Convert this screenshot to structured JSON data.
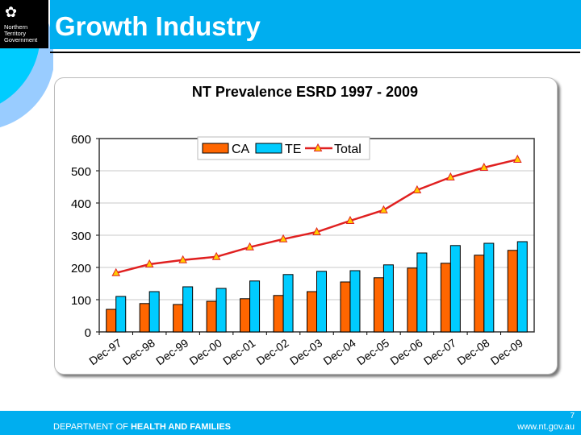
{
  "logo": {
    "text_lines": [
      "Northern",
      "Territory",
      "Government"
    ]
  },
  "header": {
    "title": "Growth Industry"
  },
  "footer": {
    "dept_prefix": "DEPARTMENT OF ",
    "dept_bold": "HEALTH AND FAMILIES",
    "url": "www.nt.gov.au",
    "page_number": "7"
  },
  "colors": {
    "brand_blue": "#00aeef",
    "ca": "#ff6600",
    "te": "#00ccff",
    "total": "#e02020",
    "marker": "#ffcc00"
  },
  "chart_data": {
    "type": "bar",
    "title": "NT Prevalence ESRD 1997 - 2009",
    "categories": [
      "Dec-97",
      "Dec-98",
      "Dec-99",
      "Dec-00",
      "Dec-01",
      "Dec-02",
      "Dec-03",
      "Dec-04",
      "Dec-05",
      "Dec-06",
      "Dec-07",
      "Dec-08",
      "Dec-09"
    ],
    "series": [
      {
        "name": "CA",
        "kind": "bar",
        "values": [
          70,
          88,
          85,
          95,
          103,
          113,
          125,
          155,
          168,
          198,
          213,
          238,
          253
        ]
      },
      {
        "name": "TE",
        "kind": "bar",
        "values": [
          110,
          125,
          140,
          135,
          158,
          178,
          188,
          190,
          208,
          245,
          268,
          275,
          280
        ]
      },
      {
        "name": "Total",
        "kind": "line",
        "values": [
          183,
          210,
          223,
          233,
          263,
          288,
          310,
          345,
          378,
          440,
          480,
          510,
          535
        ]
      }
    ],
    "ylim": [
      0,
      600
    ],
    "yticks": [
      0,
      100,
      200,
      300,
      400,
      500,
      600
    ],
    "grid": true,
    "legend": "top-center"
  }
}
